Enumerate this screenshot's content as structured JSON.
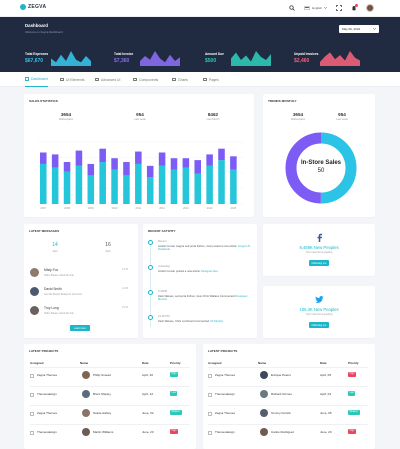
{
  "brand": {
    "name": "ZEGVA",
    "color": "#1fb5c9"
  },
  "topbar": {
    "language": "English",
    "icons": [
      "search-icon",
      "globe-icon",
      "expand-icon",
      "bell-icon",
      "avatar"
    ]
  },
  "hero": {
    "title": "Dashboard",
    "subtitle": "Welcome to Zegva Dashboard",
    "date": "May 06, 2022"
  },
  "stats": [
    {
      "label": "Total Expenses",
      "value": "$67,670",
      "color": "#36c1e6",
      "spark": [
        6,
        3,
        9,
        4,
        12,
        5,
        3,
        8,
        4
      ]
    },
    {
      "label": "Total Invoice",
      "value": "$7,360",
      "color": "#8a6cf0",
      "spark": [
        4,
        8,
        5,
        12,
        6,
        3,
        9,
        4,
        7
      ]
    },
    {
      "label": "Amount Due",
      "value": "$500",
      "color": "#2fc8b8",
      "spark": [
        5,
        9,
        4,
        7,
        3,
        10,
        6,
        4,
        8
      ]
    },
    {
      "label": "Unpaid Invoices",
      "value": "$2,460",
      "color": "#f0607a",
      "spark": [
        3,
        7,
        10,
        5,
        8,
        4,
        11,
        6,
        4
      ]
    }
  ],
  "tabs": [
    {
      "label": "Dashboard",
      "active": true
    },
    {
      "label": "UI Elements",
      "active": false
    },
    {
      "label": "Advanced UI",
      "active": false
    },
    {
      "label": "Components",
      "active": false
    },
    {
      "label": "Charts",
      "active": false
    },
    {
      "label": "Pages",
      "active": false
    }
  ],
  "sales": {
    "title": "SALES STATISTICS",
    "stats": [
      {
        "value": "3654",
        "label": "Marketplace"
      },
      {
        "value": "954",
        "label": "Last week"
      },
      {
        "value": "8462",
        "label": "Last Month"
      }
    ]
  },
  "chart_data": {
    "type": "bar",
    "stacked": true,
    "categories": [
      "2007",
      "",
      "2008",
      "",
      "2009",
      "",
      "2010",
      "",
      "2011",
      "",
      "2012",
      "",
      "2013",
      "",
      "2014",
      "",
      "2015"
    ],
    "x_tick_labels": [
      "2007",
      "2008",
      "2009",
      "2010",
      "2011",
      "2012",
      "2013",
      "2014",
      "2015"
    ],
    "series": [
      {
        "color": "#26c6da",
        "values": [
          42,
          38,
          34,
          40,
          30,
          44,
          36,
          30,
          42,
          28,
          40,
          36,
          38,
          32,
          40,
          46,
          36
        ]
      },
      {
        "color": "#7c5cf4",
        "values": [
          12,
          14,
          10,
          16,
          12,
          14,
          12,
          14,
          13,
          12,
          14,
          12,
          10,
          14,
          12,
          12,
          14
        ]
      }
    ],
    "ylim": [
      0,
      65
    ],
    "grid": true
  },
  "trends": {
    "title": "TRENDS MONTHLY",
    "stats": [
      {
        "value": "3654",
        "label": "Marketplace"
      },
      {
        "value": "954",
        "label": "Last week"
      }
    ],
    "center_title": "In-Store Sales",
    "center_value": "50",
    "ring_segments": [
      {
        "color": "#2bc3e6",
        "value": 50
      },
      {
        "color": "#7c5cf4",
        "value": 50
      }
    ]
  },
  "messages": {
    "title": "LATEST MESSAGES",
    "counts": [
      {
        "value": "14",
        "label": "April",
        "color": "#1fb5c9"
      },
      {
        "value": "16",
        "label": "April",
        "color": "#555555"
      }
    ],
    "items": [
      {
        "name": "Misty Fox",
        "text": "Hello! Please check this link",
        "date": "13:15",
        "color": "#8d7a6c"
      },
      {
        "name": "David Smith",
        "text": "Get this Report Ready for tomorrow",
        "date": "14:30",
        "color": "#4a5a70"
      },
      {
        "name": "Troy Long",
        "text": "Hello! Please check this link",
        "date": "15:30",
        "color": "#6a6060"
      }
    ],
    "button": "Load more"
  },
  "activity": {
    "title": "RECENT ACTIVITY",
    "items": [
      {
        "head": "Recent",
        "text": "Andrei Coman magna sed porta finibus, risus posted a new article:",
        "link": "Forget UX Rowlands"
      },
      {
        "head": "Yesterday",
        "text": "Andrei Coman posted a new article:",
        "link": "Designer Alex"
      },
      {
        "head": "2:30PM",
        "text": "Zack Wetass, sed porta finibus, risus Chris Wallace Commented",
        "link": "Developer Moreno"
      },
      {
        "head": "12:48 PM",
        "text": "Zack Wetass, Chris combined Commented",
        "link": "UX Murphy"
      }
    ]
  },
  "social": [
    {
      "icon": "facebook-icon",
      "value": "8,469K New Peoples",
      "sub": "Your main list is growing",
      "button": "Following me",
      "color": "#3b5998"
    },
    {
      "icon": "twitter-icon",
      "value": "105.3K New Peoples",
      "sub": "Your main list is growing",
      "button": "Following me",
      "color": "#1da1f2"
    }
  ],
  "projects_left": {
    "title": "LATEST PROJECTS",
    "headers": [
      "Assigned",
      "Name",
      "Date",
      "Priority"
    ],
    "rows": [
      {
        "assigned": "Zegva Themes",
        "name": "Philip Smead",
        "date": "April, 20",
        "priority": "High",
        "pcolor": "#2fc8b8",
        "acolor": "#7d6552"
      },
      {
        "assigned": "Themesdesign",
        "name": "Brent Shipley",
        "date": "April, 12",
        "priority": "Low",
        "pcolor": "#2fc8b8",
        "acolor": "#5a6b80"
      },
      {
        "assigned": "Zegva Themes",
        "name": "Scarle Ashley",
        "date": "June, 02",
        "priority": "Medium",
        "pcolor": "#2fc8b8",
        "acolor": "#8a7366"
      },
      {
        "assigned": "Themesdesign",
        "name": "Martin Williams",
        "date": "June, 20",
        "priority": "High",
        "pcolor": "#e94560",
        "acolor": "#6b5b52"
      }
    ]
  },
  "projects_right": {
    "title": "LATEST PROJECTS",
    "headers": [
      "Assigned",
      "Name",
      "Date",
      "Priority"
    ],
    "rows": [
      {
        "assigned": "Zegva Themes",
        "name": "Enrique Peters",
        "date": "April, 05",
        "priority": "High",
        "pcolor": "#e94560",
        "acolor": "#3e4a5c"
      },
      {
        "assigned": "Themesdesign",
        "name": "Richard Grimes",
        "date": "April, 04",
        "priority": "Low",
        "pcolor": "#2fc8b8",
        "acolor": "#6a7a80"
      },
      {
        "assigned": "Zegva Themes",
        "name": "Tommy Ferrick",
        "date": "June, 05",
        "priority": "Medium",
        "pcolor": "#2fc8b8",
        "acolor": "#55606d"
      },
      {
        "assigned": "Themesdesign",
        "name": "Carlos Rodriguez",
        "date": "June, 20",
        "priority": "High",
        "pcolor": "#e94560",
        "acolor": "#6e5c4e"
      }
    ]
  }
}
